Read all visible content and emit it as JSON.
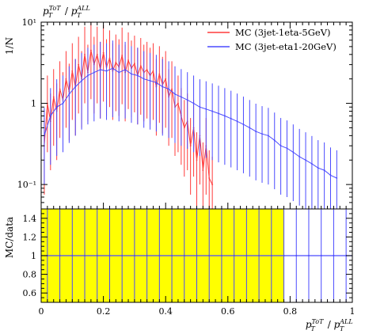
{
  "chart_data": [
    {
      "type": "line",
      "panel": "main",
      "title": "",
      "xlabel": "p_T^{ToT} / p_T^{ALL}",
      "ylabel": "1/N",
      "xlim": [
        0,
        1
      ],
      "ylim": [
        0.05,
        10
      ],
      "yscale": "log",
      "y_ticks": [
        {
          "value": 10,
          "label": "10¹"
        },
        {
          "value": 1,
          "label": "1"
        },
        {
          "value": 0.1,
          "label": "10⁻¹"
        }
      ],
      "x_ticks": [],
      "legend_position": "top-right",
      "series": [
        {
          "name": "MC (3jet-1eta-5GeV)",
          "color": "#ff3b3b",
          "x": [
            0.01,
            0.02,
            0.03,
            0.04,
            0.05,
            0.06,
            0.07,
            0.08,
            0.09,
            0.1,
            0.11,
            0.12,
            0.13,
            0.14,
            0.15,
            0.16,
            0.17,
            0.18,
            0.19,
            0.2,
            0.21,
            0.22,
            0.23,
            0.24,
            0.25,
            0.26,
            0.27,
            0.28,
            0.29,
            0.3,
            0.31,
            0.32,
            0.33,
            0.34,
            0.35,
            0.36,
            0.37,
            0.38,
            0.39,
            0.4,
            0.41,
            0.42,
            0.43,
            0.44,
            0.45,
            0.46,
            0.47,
            0.48,
            0.49,
            0.5,
            0.51,
            0.52,
            0.53,
            0.54,
            0.55
          ],
          "values": [
            0.3,
            1.0,
            0.6,
            1.2,
            0.8,
            1.5,
            1.1,
            2.0,
            1.4,
            2.5,
            1.6,
            3.0,
            2.0,
            4.0,
            2.4,
            4.5,
            3.0,
            4.0,
            2.6,
            4.2,
            2.8,
            3.6,
            2.5,
            3.2,
            2.8,
            3.9,
            2.4,
            3.4,
            2.7,
            3.1,
            2.2,
            2.9,
            2.4,
            2.6,
            2.2,
            2.5,
            1.6,
            2.3,
            1.7,
            2.0,
            1.2,
            1.5,
            0.9,
            1.0,
            0.7,
            0.5,
            0.6,
            0.3,
            0.5,
            0.2,
            0.4,
            0.15,
            0.3,
            0.12,
            0.1
          ]
        },
        {
          "name": "MC (3jet-eta1-20GeV)",
          "color": "#4a4aff",
          "x": [
            0.01,
            0.03,
            0.05,
            0.07,
            0.09,
            0.11,
            0.13,
            0.15,
            0.17,
            0.19,
            0.21,
            0.23,
            0.25,
            0.27,
            0.29,
            0.31,
            0.33,
            0.35,
            0.37,
            0.39,
            0.41,
            0.43,
            0.45,
            0.47,
            0.49,
            0.51,
            0.53,
            0.55,
            0.57,
            0.59,
            0.61,
            0.63,
            0.65,
            0.67,
            0.69,
            0.71,
            0.73,
            0.75,
            0.77,
            0.79,
            0.81,
            0.83,
            0.85,
            0.87,
            0.89,
            0.91,
            0.93,
            0.95
          ],
          "values": [
            0.4,
            0.7,
            0.9,
            1.0,
            1.3,
            1.6,
            1.9,
            2.2,
            2.4,
            2.6,
            2.5,
            2.7,
            2.4,
            2.6,
            2.3,
            2.2,
            2.0,
            1.9,
            1.8,
            1.6,
            1.5,
            1.3,
            1.2,
            1.1,
            1.0,
            0.9,
            0.85,
            0.8,
            0.75,
            0.7,
            0.65,
            0.6,
            0.55,
            0.5,
            0.45,
            0.42,
            0.4,
            0.35,
            0.3,
            0.28,
            0.25,
            0.22,
            0.2,
            0.18,
            0.16,
            0.15,
            0.13,
            0.12
          ]
        }
      ]
    },
    {
      "type": "line",
      "panel": "ratio",
      "title": "",
      "xlabel": "p_T^{ToT} / p_T^{ALL}",
      "ylabel": "MC/data",
      "xlim": [
        0,
        1
      ],
      "ylim": [
        0.5,
        1.5
      ],
      "yscale": "linear",
      "y_ticks": [
        {
          "value": 1.4,
          "label": "1.4"
        },
        {
          "value": 1.2,
          "label": "1.2"
        },
        {
          "value": 1.0,
          "label": "1"
        },
        {
          "value": 0.8,
          "label": "0.8"
        },
        {
          "value": 0.6,
          "label": "0.6"
        }
      ],
      "x_ticks": [
        {
          "value": 0,
          "label": "0"
        },
        {
          "value": 0.2,
          "label": "0.2"
        },
        {
          "value": 0.4,
          "label": "0.4"
        },
        {
          "value": 0.6,
          "label": "0.6"
        },
        {
          "value": 0.8,
          "label": "0.8"
        },
        {
          "value": 1.0,
          "label": "1"
        }
      ],
      "band_color": "#ffff00",
      "band_xrange": [
        0,
        0.78
      ],
      "series": [
        {
          "name": "",
          "color": "#4a4aff",
          "x": [
            0.02,
            0.06,
            0.1,
            0.14,
            0.18,
            0.22,
            0.26,
            0.3,
            0.34,
            0.38,
            0.42,
            0.46,
            0.5,
            0.54,
            0.58,
            0.62,
            0.66,
            0.7,
            0.74,
            0.78,
            0.82,
            0.86,
            0.9,
            0.94,
            0.98
          ],
          "values": [
            1.0,
            1.0,
            1.0,
            1.0,
            1.0,
            1.0,
            1.0,
            1.0,
            1.0,
            1.0,
            1.0,
            1.0,
            1.0,
            1.0,
            1.0,
            1.0,
            1.0,
            1.0,
            1.0,
            1.0,
            1.0,
            1.0,
            1.0,
            1.0,
            1.0
          ]
        }
      ]
    }
  ]
}
